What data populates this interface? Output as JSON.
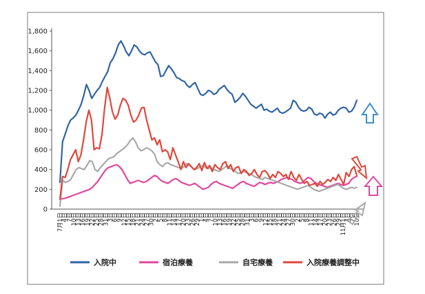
{
  "chart_data": {
    "type": "line",
    "ylim": [
      0,
      1800
    ],
    "y_ticks": [
      "0",
      "200",
      "400",
      "600",
      "800",
      "1,000",
      "1,200",
      "1,400",
      "1,600",
      "1,800"
    ],
    "x_ticks": [
      "7月1日",
      "4日",
      "7日",
      "10日",
      "13日",
      "16日",
      "19日",
      "22日",
      "25日",
      "28日",
      "31日",
      "3日",
      "6日",
      "9日",
      "12日",
      "15日",
      "18日",
      "21日",
      "24日",
      "27日",
      "30日",
      "2日",
      "5日",
      "8日",
      "11日",
      "14日",
      "17日",
      "20日",
      "23日",
      "26日",
      "29日",
      "1日",
      "4日",
      "7日",
      "10日",
      "13日",
      "16日",
      "19日",
      "22日",
      "25日",
      "28日",
      "31日",
      "3日",
      "6日",
      "9日",
      "12日",
      "15日",
      "18日",
      "21日",
      "24日",
      "27日",
      "30日",
      "2日",
      "5日",
      "8日",
      "11日",
      "14日",
      "17日",
      "20日",
      "23日",
      "26日",
      "29日",
      "11月1日",
      "4日",
      "7日",
      "10日"
    ],
    "grid": false,
    "legend_position": "bottom",
    "series": [
      {
        "name": "入院中",
        "color": "#2f64a5",
        "values": [
          270,
          680,
          760,
          840,
          900,
          920,
          950,
          1000,
          1060,
          1150,
          1260,
          1200,
          1120,
          1160,
          1200,
          1230,
          1290,
          1340,
          1390,
          1480,
          1520,
          1580,
          1660,
          1700,
          1650,
          1590,
          1550,
          1600,
          1660,
          1640,
          1600,
          1570,
          1560,
          1580,
          1590,
          1540,
          1490,
          1460,
          1340,
          1350,
          1400,
          1450,
          1420,
          1380,
          1330,
          1320,
          1300,
          1290,
          1250,
          1230,
          1260,
          1280,
          1220,
          1160,
          1150,
          1170,
          1200,
          1190,
          1160,
          1170,
          1210,
          1230,
          1250,
          1210,
          1180,
          1160,
          1080,
          1100,
          1130,
          1170,
          1140,
          1100,
          1060,
          1040,
          1020,
          1040,
          1060,
          1000,
          1010,
          990,
          980,
          1000,
          1020,
          980,
          970,
          980,
          1000,
          1020,
          1100,
          1080,
          1030,
          1000,
          990,
          1000,
          1030,
          1010,
          960,
          950,
          970,
          960,
          920,
          960,
          980,
          950,
          960,
          1000,
          1020,
          1030,
          1020,
          980,
          990,
          1030,
          1100
        ]
      },
      {
        "name": "宿泊療養",
        "color": "#e0479e",
        "values": [
          100,
          105,
          110,
          120,
          130,
          140,
          150,
          160,
          170,
          180,
          190,
          200,
          220,
          250,
          280,
          320,
          360,
          400,
          420,
          430,
          440,
          450,
          430,
          400,
          350,
          300,
          260,
          270,
          280,
          290,
          280,
          270,
          280,
          300,
          320,
          340,
          330,
          300,
          280,
          270,
          260,
          280,
          300,
          310,
          290,
          270,
          260,
          250,
          240,
          250,
          260,
          240,
          220,
          200,
          210,
          220,
          250,
          270,
          280,
          260,
          250,
          240,
          230,
          220,
          210,
          230,
          250,
          270,
          280,
          260,
          250,
          240,
          230,
          250,
          270,
          260,
          250,
          260,
          270,
          260,
          270,
          280,
          300,
          310,
          320,
          310,
          300,
          280,
          270,
          260,
          270,
          300,
          320,
          310,
          280,
          260,
          250,
          240,
          230,
          220,
          230,
          240,
          250,
          260,
          250,
          240,
          250,
          260,
          300,
          320,
          330
        ]
      },
      {
        "name": "自宅療養",
        "color": "#a9a9a9",
        "values": [
          30,
          290,
          270,
          280,
          300,
          350,
          400,
          420,
          410,
          400,
          440,
          490,
          480,
          400,
          380,
          420,
          450,
          480,
          510,
          520,
          530,
          560,
          580,
          600,
          620,
          650,
          690,
          720,
          680,
          620,
          590,
          600,
          620,
          610,
          590,
          560,
          480,
          450,
          430,
          460,
          470,
          450,
          440,
          430,
          420,
          410,
          430,
          460,
          440,
          420,
          400,
          410,
          430,
          440,
          420,
          410,
          420,
          400,
          390,
          380,
          400,
          420,
          440,
          410,
          400,
          380,
          360,
          370,
          380,
          370,
          360,
          350,
          330,
          320,
          310,
          300,
          320,
          310,
          300,
          290,
          280,
          270,
          260,
          250,
          240,
          230,
          220,
          210,
          200,
          210,
          220,
          230,
          240,
          220,
          200,
          190,
          180,
          190,
          200,
          210,
          220,
          230,
          240,
          250,
          230,
          210,
          200,
          210,
          220,
          210,
          220
        ]
      },
      {
        "name": "入院療養調整中",
        "color": "#e0473a",
        "values": [
          100,
          330,
          320,
          400,
          500,
          550,
          600,
          480,
          550,
          700,
          880,
          1000,
          900,
          600,
          620,
          610,
          750,
          1020,
          1230,
          1120,
          980,
          910,
          950,
          1050,
          1120,
          1100,
          1050,
          950,
          880,
          900,
          950,
          1020,
          1030,
          900,
          800,
          700,
          720,
          650,
          700,
          580,
          600,
          580,
          500,
          620,
          550,
          480,
          400,
          480,
          420,
          460,
          430,
          400,
          420,
          460,
          390,
          470,
          410,
          440,
          380,
          450,
          420,
          400,
          460,
          480,
          410,
          450,
          380,
          420,
          430,
          360,
          400,
          380,
          340,
          360,
          400,
          350,
          320,
          380,
          390,
          360,
          310,
          350,
          320,
          380,
          360,
          330,
          350,
          300,
          380,
          320,
          290,
          350,
          300,
          260,
          280,
          240,
          250,
          260,
          230,
          280,
          250,
          270,
          300,
          280,
          320,
          290,
          350,
          300,
          250,
          370,
          330,
          400,
          430,
          340
        ]
      }
    ]
  },
  "arrow_colors": {
    "blue": "#3c8fc8",
    "red": "#e0473a",
    "magenta": "#e0479e",
    "gray": "#a9a9a9"
  }
}
